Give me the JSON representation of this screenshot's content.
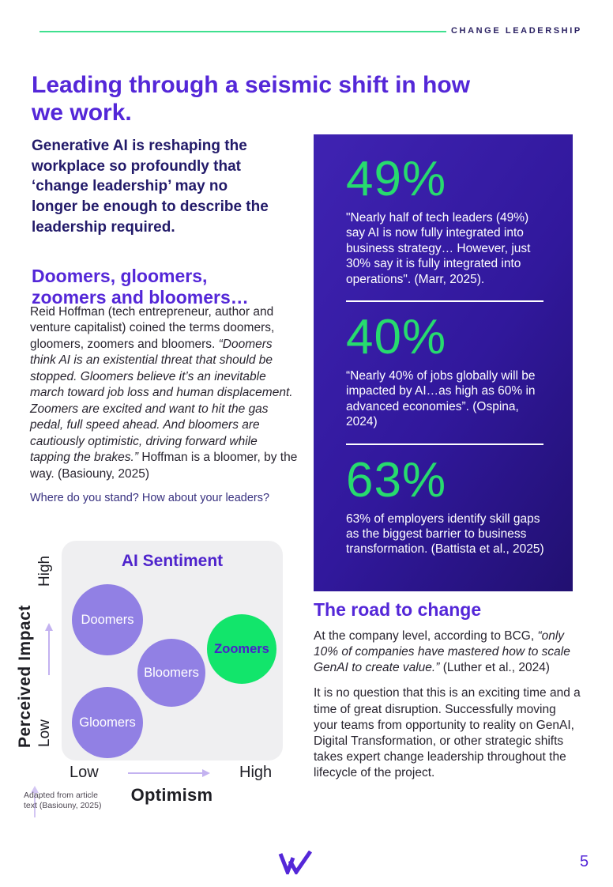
{
  "colors": {
    "accent_green": "#27DB6E",
    "accent_purple": "#5427D8",
    "header_line_green": "#3FE08F",
    "stat_box_gradient": [
      "#3F23B2",
      "#211071"
    ],
    "bubble_purple": "#9180E4",
    "bubble_green": "#12E56B",
    "chart_panel_bg": "#EFEFF1"
  },
  "header": {
    "tag": "CHANGE LEADERSHIP"
  },
  "page_title": "Leading through a seismic shift in how we work.",
  "left_column": {
    "intro": "Generative AI is reshaping the workplace so profoundly that ‘change leadership’ may no longer be enough to describe the leadership required.",
    "subhead": "Doomers, gloomers, zoomers and bloomers…",
    "body_segments": [
      {
        "text": "Reid Hoffman (tech entrepreneur, author and venture capitalist) coined the terms doomers, gloomers, zoomers and bloomers. "
      },
      {
        "text": "“Doomers think AI is an existential threat that should be stopped. Gloomers believe it’s an inevitable march toward job loss and human displacement. Zoomers are excited and want to hit the gas pedal, full speed ahead. And bloomers are cautiously optimistic, driving forward while tapping the brakes.” ",
        "italic": true
      },
      {
        "text": "Hoffman is a bloomer, by the way. (Basiouny, 2025)"
      }
    ],
    "question": "Where do you stand? How about your leaders?"
  },
  "chart_data": {
    "type": "scatter",
    "title": "AI Sentiment",
    "xlabel": "Optimism",
    "ylabel": "Perceived Impact",
    "x_ticks": [
      "Low",
      "High"
    ],
    "y_ticks": [
      "Low",
      "High"
    ],
    "bubbles": [
      {
        "label": "Doomers",
        "x": 0.21,
        "y": 0.64,
        "optimism": "low",
        "perceived_impact": "high",
        "color": "#9180E4",
        "text_color": "#FFFFFF"
      },
      {
        "label": "Bloomers",
        "x": 0.5,
        "y": 0.4,
        "optimism": "medium",
        "perceived_impact": "medium",
        "color": "#9180E4",
        "text_color": "#FFFFFF"
      },
      {
        "label": "Zoomers",
        "x": 0.81,
        "y": 0.51,
        "optimism": "high",
        "perceived_impact": "medium-high",
        "color": "#12E56B",
        "text_color": "#4A1ECC"
      },
      {
        "label": "Gloomers",
        "x": 0.21,
        "y": 0.17,
        "optimism": "low",
        "perceived_impact": "low",
        "color": "#9180E4",
        "text_color": "#FFFFFF"
      }
    ],
    "note": "Adapted from article text (Basiouny, 2025)"
  },
  "stats_panel": {
    "stats": [
      {
        "value": "49%",
        "text": "\"Nearly half of tech leaders (49%) say AI is now fully integrated into business strategy… However, just 30% say it is fully integrated into operations\". (Marr, 2025)."
      },
      {
        "value": "40%",
        "text": "“Nearly 40% of jobs globally will be impacted by AI…as high as 60% in advanced economies”. (Ospina, 2024)"
      },
      {
        "value": "63%",
        "text": "63% of employers identify skill gaps as the biggest barrier to business transformation. (Battista et al., 2025)"
      }
    ]
  },
  "road": {
    "heading": "The road to change",
    "p1_segments": [
      {
        "text": "At the company level, according to BCG, "
      },
      {
        "text": "“only 10% of companies have mastered how to scale GenAI to create value.”",
        "italic": true
      },
      {
        "text": " (Luther et al., 2024)"
      }
    ],
    "p2": "It is no question that this is an exciting time and a time of great disruption. Successfully moving your teams from opportunity to reality on GenAI, Digital Transformation, or other strategic shifts takes expert change leadership throughout the lifecycle of the project."
  },
  "footer": {
    "page_number": "5"
  }
}
